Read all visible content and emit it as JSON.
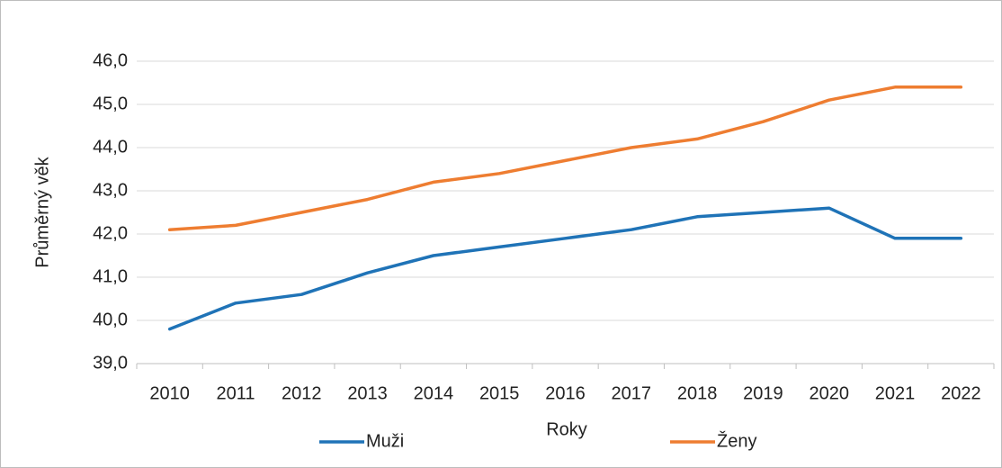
{
  "chart_data": {
    "type": "line",
    "categories": [
      "2010",
      "2011",
      "2012",
      "2013",
      "2014",
      "2015",
      "2016",
      "2017",
      "2018",
      "2019",
      "2020",
      "2021",
      "2022"
    ],
    "series": [
      {
        "name": "Muži",
        "color": "#1f73b7",
        "values": [
          39.8,
          40.4,
          40.6,
          41.1,
          41.5,
          41.7,
          41.9,
          42.1,
          42.4,
          42.5,
          42.6,
          41.9,
          41.9
        ]
      },
      {
        "name": "Ženy",
        "color": "#ee7d31",
        "values": [
          42.1,
          42.2,
          42.5,
          42.8,
          43.2,
          43.4,
          43.7,
          44.0,
          44.2,
          44.6,
          45.1,
          45.4,
          45.4
        ]
      }
    ],
    "ylim": [
      39,
      46
    ],
    "yticks": [
      {
        "value": 39,
        "label": "39,0"
      },
      {
        "value": 40,
        "label": "40,0"
      },
      {
        "value": 41,
        "label": "41,0"
      },
      {
        "value": 42,
        "label": "42,0"
      },
      {
        "value": 43,
        "label": "43,0"
      },
      {
        "value": 44,
        "label": "44,0"
      },
      {
        "value": 45,
        "label": "45,0"
      },
      {
        "value": 46,
        "label": "46,0"
      }
    ],
    "y_label": "Průměrný věk",
    "x_label": "Roky",
    "grid": true
  }
}
